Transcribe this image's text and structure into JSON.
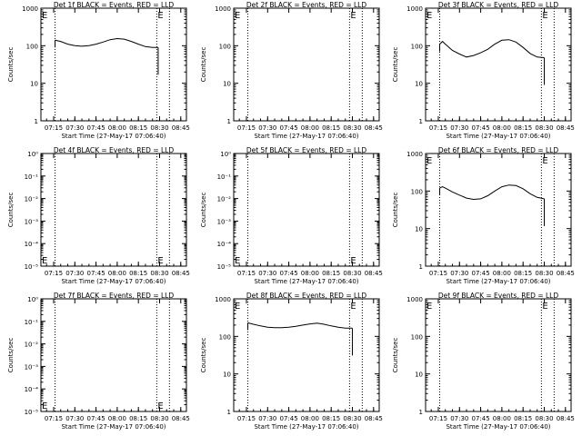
{
  "start_time_label": "Start Time (27-May-17 07:06:40)",
  "y_axis_label": "Counts/sec",
  "x_ticks": [
    "07:15",
    "07:30",
    "07:45",
    "08:00",
    "08:15",
    "08:30",
    "08:45"
  ],
  "colors": {
    "axes": "#000000",
    "events": "#000000",
    "lld": "#ff0000"
  },
  "chart_data": [
    {
      "type": "line",
      "title": "Det 1f BLACK = Events, RED = LLD",
      "ylabel": "Counts/sec",
      "xlabel": "Start Time (27-May-17 07:06:40)",
      "xlim": [
        "07:06",
        "08:49"
      ],
      "y_scale": "log",
      "y_ticks": [
        "1",
        "10",
        "100",
        "1000"
      ],
      "ylim": [
        1,
        1000
      ],
      "vlines": [
        "07:16",
        "08:28",
        "08:37"
      ],
      "series": [
        {
          "x": [
            "07:16",
            "07:20",
            "07:25",
            "07:30",
            "07:35",
            "07:40",
            "07:45",
            "07:50",
            "07:55",
            "08:00",
            "08:05",
            "08:10",
            "08:15",
            "08:20",
            "08:25",
            "08:29"
          ],
          "values": [
            140,
            130,
            110,
            100,
            97,
            100,
            110,
            125,
            145,
            155,
            150,
            130,
            110,
            95,
            90,
            90
          ]
        }
      ],
      "annotations": [
        "E",
        "E"
      ]
    },
    {
      "type": "line",
      "title": "Det 2f BLACK = Events, RED = LLD",
      "ylabel": "Counts/sec",
      "xlabel": "Start Time (27-May-17 07:06:40)",
      "xlim": [
        "07:06",
        "08:49"
      ],
      "y_scale": "log",
      "y_ticks": [
        "1",
        "10",
        "100",
        "1000"
      ],
      "ylim": [
        1,
        1000
      ],
      "vlines": [
        "07:16",
        "08:28",
        "08:37"
      ],
      "series": [],
      "annotations": [
        "E",
        "E"
      ]
    },
    {
      "type": "line",
      "title": "Det 3f BLACK = Events, RED = LLD",
      "ylabel": "Counts/sec",
      "xlabel": "Start Time (27-May-17 07:06:40)",
      "xlim": [
        "07:06",
        "08:49"
      ],
      "y_scale": "log",
      "y_ticks": [
        "1",
        "10",
        "100",
        "1000"
      ],
      "ylim": [
        1,
        1000
      ],
      "vlines": [
        "07:16",
        "08:28",
        "08:37"
      ],
      "series": [
        {
          "x": [
            "07:16",
            "07:18",
            "07:20",
            "07:25",
            "07:30",
            "07:35",
            "07:40",
            "07:45",
            "07:50",
            "07:55",
            "08:00",
            "08:05",
            "08:10",
            "08:15",
            "08:20",
            "08:25",
            "08:30"
          ],
          "values": [
            110,
            130,
            110,
            75,
            60,
            50,
            55,
            65,
            80,
            110,
            140,
            145,
            125,
            90,
            62,
            50,
            48
          ]
        }
      ],
      "annotations": [
        "E",
        "E"
      ]
    },
    {
      "type": "line",
      "title": "Det 4f BLACK = Events, RED = LLD",
      "ylabel": "Counts/sec",
      "xlabel": "Start Time (27-May-17 07:06:40)",
      "xlim": [
        "07:06",
        "08:49"
      ],
      "y_scale": "log",
      "y_ticks": [
        "10⁻⁵",
        "10⁻⁴",
        "10⁻³",
        "10⁻²",
        "10⁻¹",
        "10⁰"
      ],
      "ylim": [
        1e-05,
        1
      ],
      "vlines": [
        "07:16",
        "08:28",
        "08:37"
      ],
      "series": [],
      "annotations": [
        "E",
        "E"
      ]
    },
    {
      "type": "line",
      "title": "Det 5f BLACK = Events, RED = LLD",
      "ylabel": "Counts/sec",
      "xlabel": "Start Time (27-May-17 07:06:40)",
      "xlim": [
        "07:06",
        "08:49"
      ],
      "y_scale": "log",
      "y_ticks": [
        "10⁻⁵",
        "10⁻⁴",
        "10⁻³",
        "10⁻²",
        "10⁻¹",
        "10⁰"
      ],
      "ylim": [
        1e-05,
        1
      ],
      "vlines": [
        "07:16",
        "08:28",
        "08:37"
      ],
      "series": [],
      "annotations": [
        "E",
        "E"
      ]
    },
    {
      "type": "line",
      "title": "Det 6f BLACK = Events, RED = LLD",
      "ylabel": "Counts/sec",
      "xlabel": "Start Time (27-May-17 07:06:40)",
      "xlim": [
        "07:06",
        "08:49"
      ],
      "y_scale": "log",
      "y_ticks": [
        "1",
        "10",
        "100",
        "1000"
      ],
      "ylim": [
        1,
        1000
      ],
      "vlines": [
        "07:16",
        "08:28",
        "08:37"
      ],
      "series": [
        {
          "x": [
            "07:16",
            "07:18",
            "07:20",
            "07:25",
            "07:30",
            "07:35",
            "07:40",
            "07:45",
            "07:50",
            "07:55",
            "08:00",
            "08:05",
            "08:10",
            "08:15",
            "08:20",
            "08:25",
            "08:30"
          ],
          "values": [
            120,
            130,
            120,
            95,
            78,
            65,
            60,
            62,
            75,
            100,
            130,
            145,
            140,
            115,
            85,
            68,
            62
          ]
        }
      ],
      "annotations": [
        "E",
        "E"
      ]
    },
    {
      "type": "line",
      "title": "Det 7f BLACK = Events, RED = LLD",
      "ylabel": "Counts/sec",
      "xlabel": "Start Time (27-May-17 07:06:40)",
      "xlim": [
        "07:06",
        "08:49"
      ],
      "y_scale": "log",
      "y_ticks": [
        "10⁻⁵",
        "10⁻⁴",
        "10⁻³",
        "10⁻²",
        "10⁻¹",
        "10⁰"
      ],
      "ylim": [
        1e-05,
        1
      ],
      "vlines": [
        "07:16",
        "08:28",
        "08:37"
      ],
      "series": [],
      "annotations": [
        "E",
        "E"
      ]
    },
    {
      "type": "line",
      "title": "Det 8f BLACK = Events, RED = LLD",
      "ylabel": "Counts/sec",
      "xlabel": "Start Time (27-May-17 07:06:40)",
      "xlim": [
        "07:06",
        "08:49"
      ],
      "y_scale": "log",
      "y_ticks": [
        "1",
        "10",
        "100",
        "1000"
      ],
      "ylim": [
        1,
        1000
      ],
      "vlines": [
        "07:16",
        "08:28",
        "08:37"
      ],
      "series": [
        {
          "x": [
            "07:16",
            "07:20",
            "07:25",
            "07:30",
            "07:35",
            "07:40",
            "07:45",
            "07:50",
            "07:55",
            "08:00",
            "08:05",
            "08:10",
            "08:15",
            "08:20",
            "08:25",
            "08:30"
          ],
          "values": [
            230,
            210,
            190,
            175,
            170,
            170,
            175,
            185,
            200,
            215,
            225,
            210,
            190,
            175,
            165,
            165
          ]
        }
      ],
      "annotations": [
        "E",
        "E"
      ]
    },
    {
      "type": "line",
      "title": "Det 9f BLACK = Events, RED = LLD",
      "ylabel": "Counts/sec",
      "xlabel": "Start Time (27-May-17 07:06:40)",
      "xlim": [
        "07:06",
        "08:49"
      ],
      "y_scale": "log",
      "y_ticks": [
        "1",
        "10",
        "100",
        "1000"
      ],
      "ylim": [
        1,
        1000
      ],
      "vlines": [
        "07:16",
        "08:28",
        "08:37"
      ],
      "series": [],
      "annotations": [
        "E",
        "E"
      ]
    }
  ]
}
